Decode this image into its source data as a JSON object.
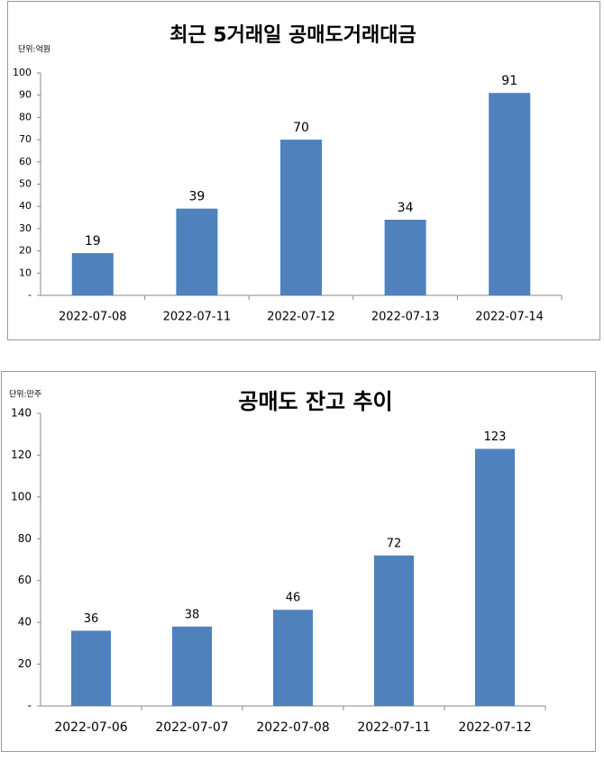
{
  "chart_data": [
    {
      "type": "bar",
      "title": "최근 5거래일 공매도거래대금",
      "ylabel": "단위:억원",
      "categories": [
        "2022-07-08",
        "2022-07-11",
        "2022-07-12",
        "2022-07-13",
        "2022-07-14"
      ],
      "values": [
        19,
        39,
        70,
        34,
        91
      ],
      "color": "#4f81bd",
      "ylim": [
        0,
        100
      ],
      "yticks": [
        {
          "value": 0,
          "label": "-"
        },
        10,
        20,
        30,
        40,
        50,
        60,
        70,
        80,
        90,
        100
      ],
      "grid": false
    },
    {
      "type": "bar",
      "title": "공매도 잔고 추이",
      "ylabel": "단위:만주",
      "categories": [
        "2022-07-06",
        "2022-07-07",
        "2022-07-08",
        "2022-07-11",
        "2022-07-12"
      ],
      "values": [
        36,
        38,
        46,
        72,
        123
      ],
      "color": "#4f81bd",
      "ylim": [
        0,
        140
      ],
      "yticks": [
        {
          "value": 0,
          "label": "-"
        },
        20,
        40,
        60,
        80,
        100,
        120,
        140
      ],
      "grid": false
    }
  ]
}
